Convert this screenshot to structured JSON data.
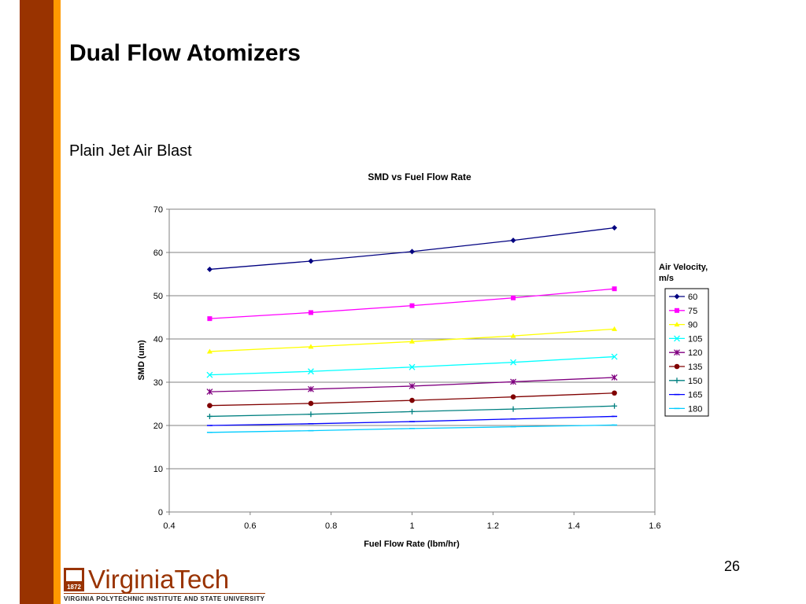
{
  "slide": {
    "title": "Dual Flow Atomizers",
    "subtitle": "Plain Jet Air Blast",
    "page_number": "26",
    "logo": {
      "name": "VirginiaTech",
      "year": "1872",
      "tagline": "VIRGINIA POLYTECHNIC INSTITUTE AND STATE UNIVERSITY"
    }
  },
  "chart_data": {
    "type": "line",
    "title": "SMD vs Fuel Flow Rate",
    "x_label": "Fuel Flow Rate (lbm/hr)",
    "y_label": "SMD (um)",
    "legend_title": "Air Velocity, m/s",
    "legend": "right",
    "grid": true,
    "x": [
      0.5,
      0.75,
      1.0,
      1.25,
      1.5
    ],
    "xlim": [
      0.4,
      1.6
    ],
    "xticks": [
      0.4,
      0.6,
      0.8,
      1,
      1.2,
      1.4,
      1.6
    ],
    "ylim": [
      0,
      70
    ],
    "yticks": [
      0,
      10,
      20,
      30,
      40,
      50,
      60,
      70
    ],
    "series": [
      {
        "name": "60",
        "color": "#000080",
        "marker": "diamond",
        "values": [
          56.1,
          58.0,
          60.2,
          62.8,
          65.7
        ]
      },
      {
        "name": "75",
        "color": "#ff00ff",
        "marker": "square",
        "values": [
          44.7,
          46.1,
          47.7,
          49.5,
          51.6
        ]
      },
      {
        "name": "90",
        "color": "#ffff00",
        "marker": "triangle",
        "values": [
          37.1,
          38.2,
          39.4,
          40.7,
          42.3
        ]
      },
      {
        "name": "105",
        "color": "#00ffff",
        "marker": "x",
        "values": [
          31.7,
          32.5,
          33.5,
          34.6,
          35.9
        ]
      },
      {
        "name": "120",
        "color": "#800080",
        "marker": "star",
        "values": [
          27.8,
          28.4,
          29.1,
          30.1,
          31.1
        ]
      },
      {
        "name": "135",
        "color": "#800000",
        "marker": "circle",
        "values": [
          24.6,
          25.1,
          25.8,
          26.6,
          27.5
        ]
      },
      {
        "name": "150",
        "color": "#008080",
        "marker": "plus",
        "values": [
          22.1,
          22.6,
          23.2,
          23.8,
          24.5
        ]
      },
      {
        "name": "165",
        "color": "#0000ff",
        "marker": "dash",
        "values": [
          20.0,
          20.4,
          20.9,
          21.5,
          22.1
        ]
      },
      {
        "name": "180",
        "color": "#00ccff",
        "marker": "dash",
        "values": [
          18.4,
          18.8,
          19.3,
          19.7,
          20.1
        ]
      }
    ]
  }
}
